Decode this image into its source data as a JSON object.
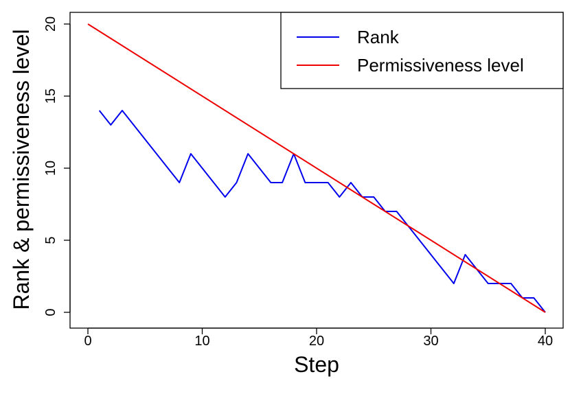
{
  "chart_data": {
    "type": "line",
    "title": "",
    "xlabel": "Step",
    "ylabel": "Rank & permissiveness level",
    "xlim": [
      0,
      40
    ],
    "ylim": [
      0,
      20
    ],
    "xticks": [
      0,
      10,
      20,
      30,
      40
    ],
    "yticks": [
      0,
      5,
      10,
      15,
      20
    ],
    "grid": false,
    "legend_position": "top-right",
    "series": [
      {
        "name": "Rank",
        "color": "#0000ee",
        "x": [
          1,
          2,
          3,
          4,
          5,
          6,
          7,
          8,
          9,
          10,
          11,
          12,
          13,
          14,
          15,
          16,
          17,
          18,
          19,
          20,
          21,
          22,
          23,
          24,
          25,
          26,
          27,
          28,
          29,
          30,
          31,
          32,
          33,
          34,
          35,
          36,
          37,
          38,
          39,
          40
        ],
        "y": [
          14,
          13,
          14,
          13,
          12,
          11,
          10,
          9,
          11,
          10,
          9,
          8,
          9,
          11,
          10,
          9,
          9,
          11,
          9,
          9,
          9,
          8,
          9,
          8,
          8,
          7,
          7,
          6,
          5,
          4,
          3,
          2,
          4,
          3,
          2,
          2,
          2,
          1,
          1,
          0
        ]
      },
      {
        "name": "Permissiveness level",
        "color": "#ee0000",
        "x": [
          0,
          40
        ],
        "y": [
          20,
          0
        ]
      }
    ]
  }
}
